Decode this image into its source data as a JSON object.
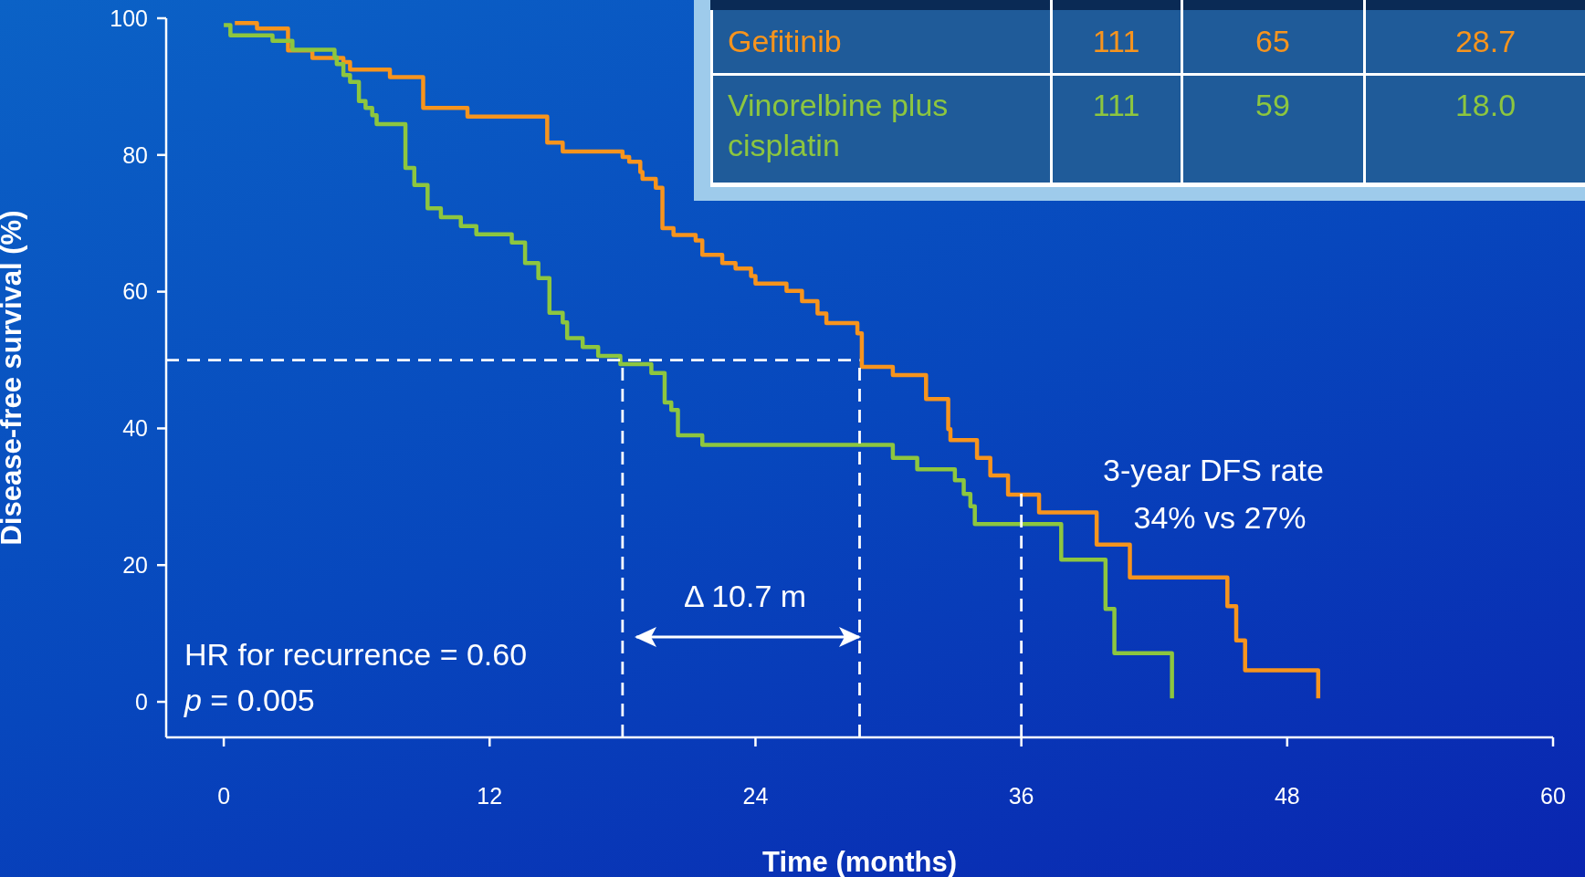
{
  "chart_data": {
    "type": "step",
    "xlabel": "Time (months)",
    "ylabel": "Disease-free survival (%)",
    "xlim": [
      -2.6,
      60
    ],
    "xticks": [
      0,
      12,
      24,
      36,
      48,
      60
    ],
    "ylim": [
      -5.2,
      100
    ],
    "yticks": [
      0,
      20,
      40,
      60,
      80,
      100
    ],
    "legend": "top right",
    "series": [
      {
        "name": "Gefitinib",
        "color": "#f7941d",
        "x": [
          0.5,
          1.5,
          2.9,
          4.0,
          5.4,
          5.7,
          7.5,
          8.3,
          9.0,
          11.0,
          13.9,
          14.6,
          15.3,
          18.0,
          18.3,
          18.8,
          18.9,
          19.5,
          19.8,
          20.3,
          21.3,
          21.6,
          22.5,
          23.1,
          23.8,
          24.0,
          25.4,
          26.1,
          26.8,
          27.2,
          28.6,
          28.8,
          30.2,
          30.9,
          31.7,
          32.7,
          32.8,
          34.0,
          34.6,
          35.4,
          36.8,
          39.4,
          40.9,
          45.3,
          45.7,
          46.1,
          49.4
        ],
        "values": [
          99.3,
          98.5,
          95.3,
          94.2,
          93.6,
          92.5,
          91.4,
          91.4,
          86.9,
          85.6,
          85.6,
          81.8,
          80.5,
          79.7,
          79.0,
          77.5,
          76.5,
          75.2,
          69.3,
          68.3,
          67.5,
          65.4,
          64.2,
          63.4,
          62.3,
          61.2,
          60.1,
          58.6,
          56.8,
          55.4,
          53.9,
          49.0,
          47.8,
          47.8,
          44.3,
          39.9,
          38.3,
          35.7,
          33.1,
          30.3,
          27.7,
          23.0,
          18.2,
          14.0,
          9.0,
          4.6,
          0.5
        ]
      },
      {
        "name": "Vinorelbine plus cisplatin",
        "color": "#8dc63f",
        "x": [
          0,
          0.3,
          2.2,
          3.1,
          5.0,
          5.1,
          5.4,
          5.7,
          6.1,
          6.4,
          6.7,
          6.9,
          8.2,
          8.6,
          9.2,
          9.8,
          10.7,
          11.4,
          13.0,
          13.6,
          14.2,
          14.7,
          15.3,
          15.5,
          16.2,
          16.9,
          17.9,
          19.3,
          19.9,
          20.2,
          20.5,
          21.6,
          30.2,
          31.3,
          33.0,
          33.4,
          33.7,
          33.9,
          37.8,
          39.8,
          40.2,
          42.8
        ],
        "values": [
          99.0,
          97.5,
          96.7,
          95.4,
          94.3,
          93.3,
          91.7,
          90.7,
          87.9,
          86.9,
          85.8,
          84.5,
          78.1,
          75.6,
          72.2,
          70.9,
          69.6,
          68.4,
          67.2,
          64.2,
          62.0,
          56.9,
          55.5,
          53.2,
          51.9,
          50.6,
          49.4,
          48.1,
          43.8,
          42.7,
          39.0,
          37.6,
          35.7,
          34.0,
          32.4,
          30.4,
          28.6,
          26.0,
          20.8,
          13.6,
          7.1,
          0.5
        ]
      },
      {
        "color": "#ffffff",
        "line_style": "dashed",
        "type": "line",
        "x": [
          -2.6,
          28.7
        ],
        "values": [
          50,
          50
        ]
      },
      {
        "color": "#ffffff",
        "line_style": "dashed",
        "type": "line",
        "x": [
          18,
          18
        ],
        "values": [
          -5.2,
          50
        ]
      },
      {
        "color": "#ffffff",
        "line_style": "dashed",
        "type": "line",
        "x": [
          28.7,
          28.7
        ],
        "values": [
          -5.2,
          50
        ]
      },
      {
        "color": "#ffffff",
        "line_style": "dashed",
        "type": "line",
        "x": [
          36,
          36
        ],
        "values": [
          -5.2,
          31
        ]
      }
    ],
    "annotations": [
      "HR for recurrence = 0.60",
      "p = 0.005",
      "Δ 10.7 m",
      "3-year DFS rate",
      "34% vs 27%",
      "111",
      "65",
      "28.7",
      "111",
      "59",
      "18.0"
    ]
  }
}
